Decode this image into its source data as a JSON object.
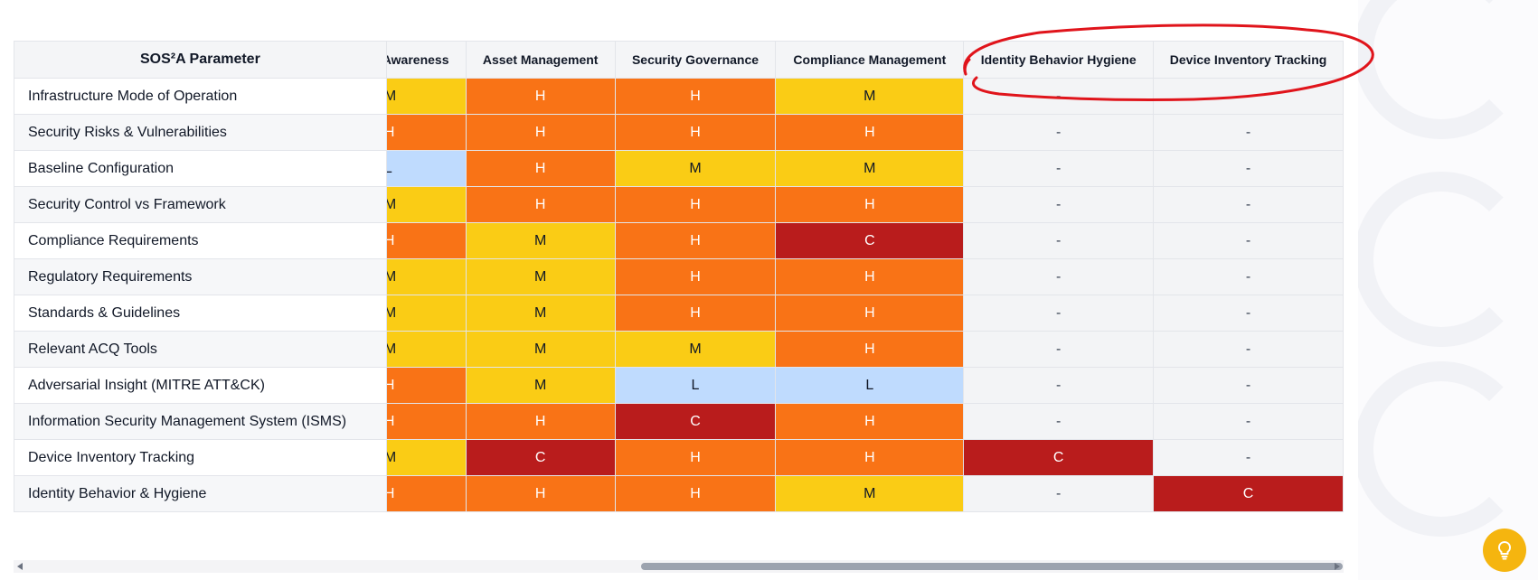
{
  "table": {
    "param_header": "SOS²A Parameter",
    "columns": [
      "Awareness",
      "Asset Management",
      "Security Governance",
      "Compliance Management",
      "Identity Behavior Hygiene",
      "Device Inventory Tracking"
    ],
    "rows": [
      {
        "label": "Infrastructure Mode of Operation",
        "values": [
          "M",
          "H",
          "H",
          "M",
          "-",
          "-"
        ]
      },
      {
        "label": "Security Risks & Vulnerabilities",
        "values": [
          "H",
          "H",
          "H",
          "H",
          "-",
          "-"
        ]
      },
      {
        "label": "Baseline Configuration",
        "values": [
          "L",
          "H",
          "M",
          "M",
          "-",
          "-"
        ]
      },
      {
        "label": "Security Control vs Framework",
        "values": [
          "M",
          "H",
          "H",
          "H",
          "-",
          "-"
        ]
      },
      {
        "label": "Compliance Requirements",
        "values": [
          "H",
          "M",
          "H",
          "C",
          "-",
          "-"
        ]
      },
      {
        "label": "Regulatory Requirements",
        "values": [
          "M",
          "M",
          "H",
          "H",
          "-",
          "-"
        ]
      },
      {
        "label": "Standards & Guidelines",
        "values": [
          "M",
          "M",
          "H",
          "H",
          "-",
          "-"
        ]
      },
      {
        "label": "Relevant ACQ Tools",
        "values": [
          "M",
          "M",
          "M",
          "H",
          "-",
          "-"
        ]
      },
      {
        "label": "Adversarial Insight (MITRE ATT&CK)",
        "values": [
          "H",
          "M",
          "L",
          "L",
          "-",
          "-"
        ]
      },
      {
        "label": "Information Security Management System (ISMS)",
        "values": [
          "H",
          "H",
          "C",
          "H",
          "-",
          "-"
        ]
      },
      {
        "label": "Device Inventory Tracking",
        "values": [
          "M",
          "C",
          "H",
          "H",
          "C",
          "-"
        ]
      },
      {
        "label": "Identity Behavior & Hygiene",
        "values": [
          "H",
          "H",
          "H",
          "M",
          "-",
          "C"
        ]
      }
    ]
  },
  "colors": {
    "C": "#b91c1c",
    "H": "#f97316",
    "M": "#facc15",
    "L": "#bfdbfe",
    "none": "#f3f4f6",
    "annotation": "#e0141b",
    "tip_button": "#f5b50f"
  },
  "icons": {
    "tip_button": "lightbulb-icon",
    "scroll_left": "left-arrow-icon",
    "scroll_right": "right-arrow-icon"
  }
}
